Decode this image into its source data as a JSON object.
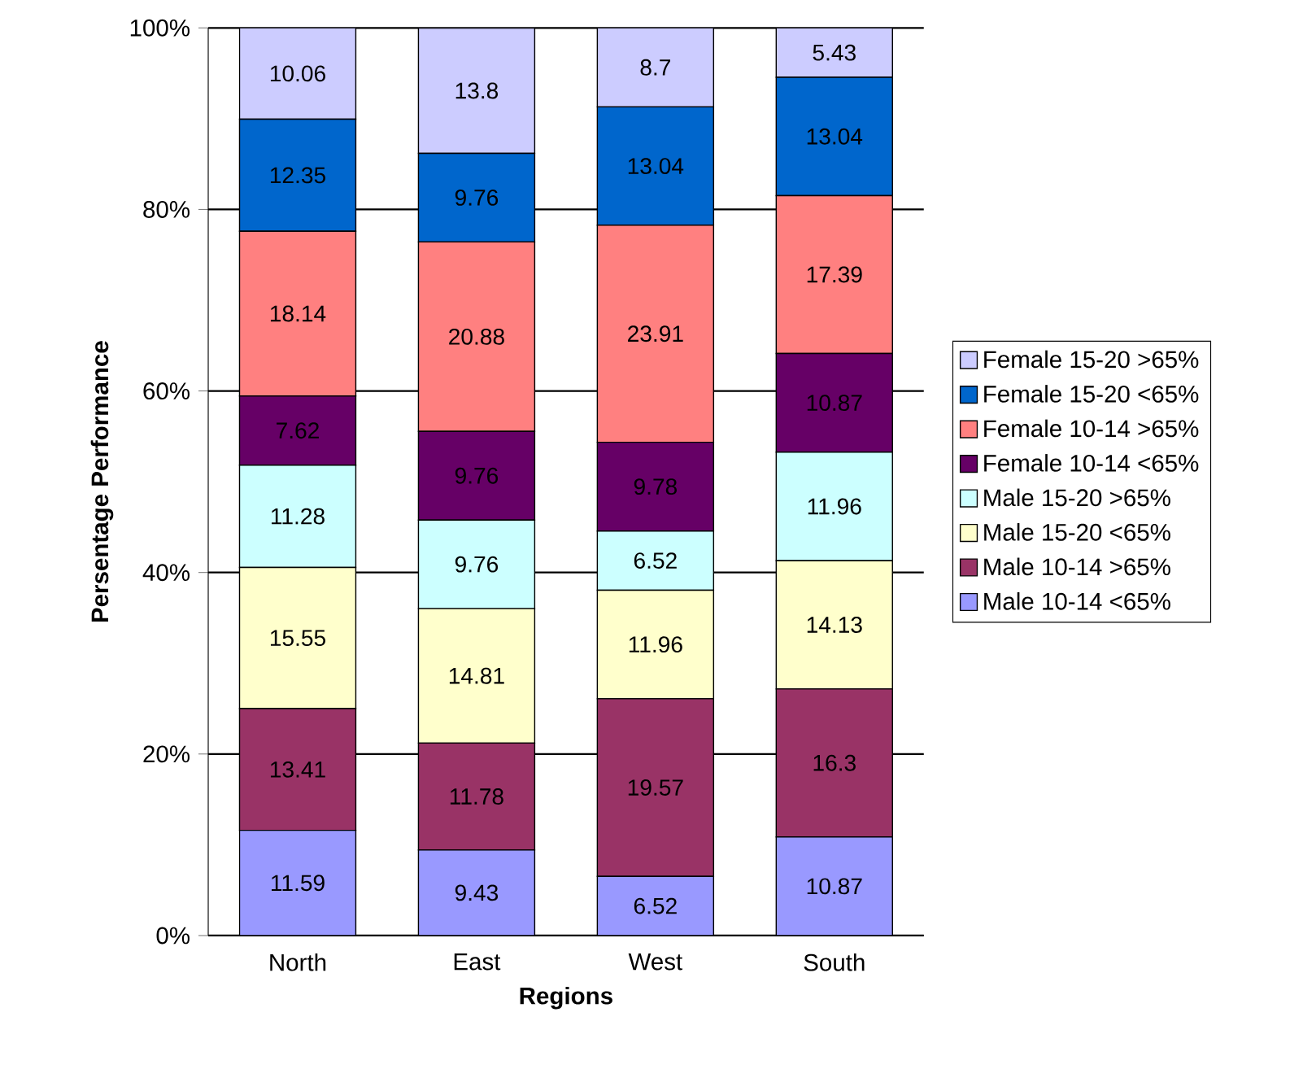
{
  "chart_data": {
    "type": "bar",
    "stacked": true,
    "xlabel": "Regions",
    "ylabel": "Persentage Performance",
    "categories": [
      "North",
      "East",
      "West",
      "South"
    ],
    "series": [
      {
        "name": "Male 10-14 <65%",
        "color": "#9999ff",
        "values": [
          11.59,
          9.43,
          6.52,
          10.87
        ]
      },
      {
        "name": "Male 10-14 >65%",
        "color": "#993366",
        "values": [
          13.41,
          11.78,
          19.57,
          16.3
        ]
      },
      {
        "name": "Male 15-20 <65%",
        "color": "#ffffcc",
        "values": [
          15.55,
          14.81,
          11.96,
          14.13
        ]
      },
      {
        "name": "Male 15-20 >65%",
        "color": "#ccffff",
        "values": [
          11.28,
          9.76,
          6.52,
          11.96
        ]
      },
      {
        "name": "Female 10-14 <65%",
        "color": "#660066",
        "values": [
          7.62,
          9.76,
          9.78,
          10.87
        ]
      },
      {
        "name": "Female 10-14 >65%",
        "color": "#ff8080",
        "values": [
          18.14,
          20.88,
          23.91,
          17.39
        ]
      },
      {
        "name": "Female 15-20 <65%",
        "color": "#0066cc",
        "values": [
          12.35,
          9.76,
          13.04,
          13.04
        ]
      },
      {
        "name": "Female 15-20 >65%",
        "color": "#ccccff",
        "values": [
          10.06,
          13.8,
          8.7,
          5.43
        ]
      }
    ],
    "ylim": [
      0,
      100
    ],
    "yticks": [
      {
        "value": 0,
        "label": "0%"
      },
      {
        "value": 20,
        "label": "20%"
      },
      {
        "value": 40,
        "label": "40%"
      },
      {
        "value": 60,
        "label": "60%"
      },
      {
        "value": 80,
        "label": "80%"
      },
      {
        "value": 100,
        "label": "100%"
      }
    ],
    "grid": "y",
    "legend": "right",
    "data_labels": true
  }
}
